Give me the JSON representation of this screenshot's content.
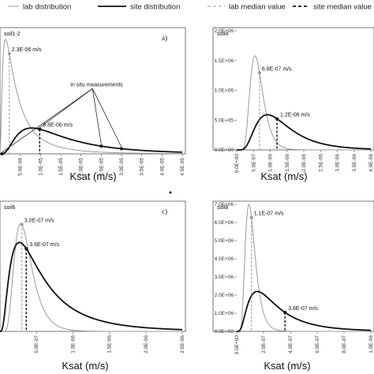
{
  "legend": [
    {
      "label": "lab distribution",
      "style": "thin-solid",
      "color": "#9a9a9a"
    },
    {
      "label": "site distribution",
      "style": "thick-solid",
      "color": "#111111"
    },
    {
      "label": "lab median value",
      "style": "thin-dashed",
      "color": "#9a9a9a"
    },
    {
      "label": "site median value",
      "style": "thick-dashed",
      "color": "#111111"
    }
  ],
  "chart_data": [
    {
      "type": "line",
      "name": "soil1-2",
      "panel_label": "a)",
      "xlabel": "Ksat (m/s)",
      "xlim": [
        0,
        4.5e-05
      ],
      "xticks": [
        "5.0E-06",
        "1.0E-05",
        "1.5E-05",
        "2.0E-05",
        "2.5E-05",
        "3.0E-05",
        "3.5E-05",
        "4.0E-05",
        "4.5E-05"
      ],
      "yticks": [],
      "ylim": [
        0,
        1
      ],
      "lab_curve": {
        "mu": -12.5,
        "sigma": 1.0
      },
      "site_curve": {
        "mu": -11.2,
        "sigma": 0.75
      },
      "lab_peak_y": 0.93,
      "site_peak_y": 0.21,
      "lab_median": 2.3e-06,
      "site_median": 9.8e-06,
      "lab_median_label": "2.3E-06 m/s",
      "site_median_label": "9.8E-06 m/s",
      "insitu_label": "in situ measurements",
      "insitu_points": [
        5e-07,
        9.8e-06,
        2.5e-05,
        3e-05
      ],
      "insitu_arrow_targets": [
        5e-07,
        9.8e-06,
        2.5e-05,
        3e-05
      ],
      "insitu_label_anchor": [
        1.7e-05,
        0.53
      ]
    },
    {
      "type": "line",
      "name": "soil4",
      "panel_label": "",
      "xlabel": "Ksat (m/s)",
      "xlim": [
        0,
        4e-06
      ],
      "xticks": [
        "0.0E+00",
        "5.0E-07",
        "1.0E-06",
        "1.5E-06",
        "2.0E-06",
        "2.5E-06",
        "3.0E-06",
        "3.5E-06",
        "4.0E-06"
      ],
      "ylim": [
        0,
        2000000
      ],
      "yticks": [
        "0.0E+00",
        "5.0E+05",
        "1.0E+06",
        "1.5E+06",
        "2.0E+06"
      ],
      "lab_curve": {
        "mu": -14.3,
        "sigma": 0.35
      },
      "site_curve": {
        "mu": -13.6,
        "sigma": 0.55
      },
      "lab_peak_y": 1580000,
      "site_peak_y": 590000,
      "lab_median": 6.8e-07,
      "site_median": 1.2e-06,
      "lab_median_label": "6.8E-07 m/s",
      "site_median_label": "1.2E-06 m/s"
    },
    {
      "type": "line",
      "name": "soil6",
      "panel_label": "c)",
      "xlabel": "Ksat (m/s)",
      "xlim": [
        0,
        2.5e-06
      ],
      "xticks": [
        "5.0E-07",
        "1.0E-06",
        "1.5E-06",
        "2.0E-06",
        "2.5E-06"
      ],
      "ylim": [
        0,
        1
      ],
      "yticks": [],
      "lab_curve": {
        "mu": -14.9,
        "sigma": 0.42
      },
      "site_curve": {
        "mu": -14.5,
        "sigma": 0.8
      },
      "lab_peak_y": 0.85,
      "site_peak_y": 0.7,
      "lab_median": 3e-07,
      "site_median": 3.6e-07,
      "lab_median_label": "3.0E-07 m/s",
      "site_median_label": "3.6E-07 m/s"
    },
    {
      "type": "line",
      "name": "soil8",
      "panel_label": "",
      "xlabel": "Ksat (m/s)",
      "xlim": [
        0,
        1e-06
      ],
      "xticks": [
        "0.0E+00",
        "2.0E-07",
        "4.0E-07",
        "6.0E-07",
        "8.0E-07",
        "1.0E-06"
      ],
      "ylim": [
        0,
        7000000
      ],
      "yticks": [
        "0.0E+00",
        "1.0E+06",
        "2.0E+06",
        "3.0E+06",
        "4.0E+06",
        "5.0E+06",
        "6.0E+06",
        "7.0E+06"
      ],
      "lab_curve": {
        "mu": -16.05,
        "sigma": 0.4
      },
      "site_curve": {
        "mu": -15.2,
        "sigma": 0.7
      },
      "lab_peak_y": 7000000,
      "site_peak_y": 2200000,
      "lab_median": 1.1e-07,
      "site_median": 3.6e-07,
      "lab_median_label": "1.1E-07 m/s",
      "site_median_label": "3.6E-07 m/s"
    }
  ]
}
